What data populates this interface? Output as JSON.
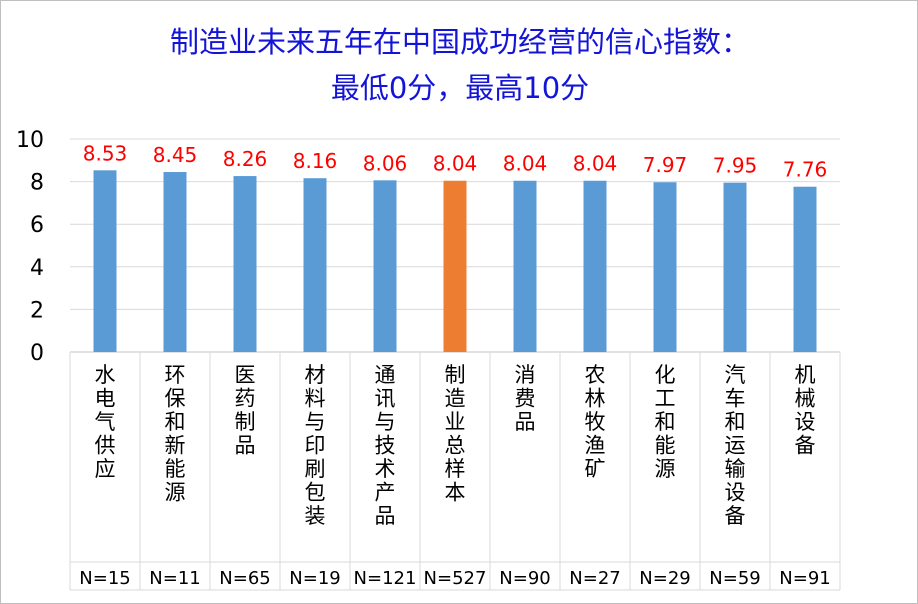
{
  "chart_data": {
    "type": "bar",
    "title_lines": [
      "制造业未来五年在中国成功经营的信心指数：",
      "最低0分，最高10分"
    ],
    "categories": [
      "水电气供应",
      "环保和新能源",
      "医药制品",
      "材料与印刷包装",
      "通讯与技术产品",
      "制造业总样本",
      "消费品",
      "农林牧渔矿",
      "化工和能源",
      "汽车和运输设备",
      "机械设备"
    ],
    "sample_sizes": [
      "N=15",
      "N=11",
      "N=65",
      "N=19",
      "N=121",
      "N=527",
      "N=90",
      "N=27",
      "N=29",
      "N=59",
      "N=91"
    ],
    "values": [
      8.53,
      8.45,
      8.26,
      8.16,
      8.06,
      8.04,
      8.04,
      8.04,
      7.97,
      7.95,
      7.76
    ],
    "value_labels": [
      "8.53",
      "8.45",
      "8.26",
      "8.16",
      "8.06",
      "8.04",
      "8.04",
      "8.04",
      "7.97",
      "7.95",
      "7.76"
    ],
    "highlight_index": 5,
    "ylim": [
      0,
      10
    ],
    "yticks": [
      0,
      2,
      4,
      6,
      8,
      10
    ],
    "grid": true,
    "legend": "none",
    "colors": {
      "bar": "#5b9bd5",
      "highlight": "#ed7d31",
      "value_label": "#ff0000",
      "title": "#1414d8",
      "grid": "#d9d9d9",
      "text": "#000000"
    }
  }
}
